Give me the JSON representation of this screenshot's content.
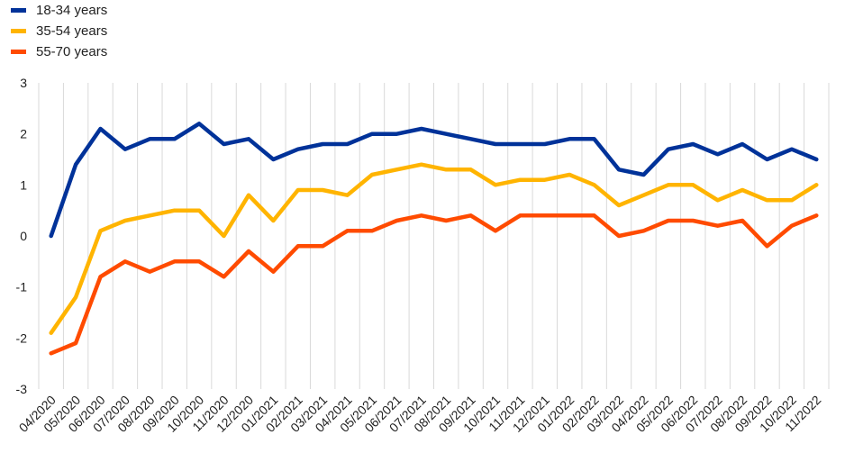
{
  "chart_data": {
    "type": "line",
    "title": "",
    "xlabel": "",
    "ylabel": "",
    "ylim": [
      -3,
      3
    ],
    "yticks": [
      3,
      2,
      1,
      0,
      -1,
      -2,
      -3
    ],
    "grid": "vertical",
    "legend_position": "top-left",
    "categories": [
      "04/2020",
      "05/2020",
      "06/2020",
      "07/2020",
      "08/2020",
      "09/2020",
      "10/2020",
      "11/2020",
      "12/2020",
      "01/2021",
      "02/2021",
      "03/2021",
      "04/2021",
      "05/2021",
      "06/2021",
      "07/2021",
      "08/2021",
      "09/2021",
      "10/2021",
      "11/2021",
      "12/2021",
      "01/2022",
      "02/2022",
      "03/2022",
      "04/2022",
      "05/2022",
      "06/2022",
      "07/2022",
      "08/2022",
      "09/2022",
      "10/2022",
      "11/2022"
    ],
    "series": [
      {
        "name": "18-34 years",
        "color": "#003299",
        "values": [
          0,
          1.4,
          2.1,
          1.7,
          1.9,
          1.9,
          2.2,
          1.8,
          1.9,
          1.5,
          1.7,
          1.8,
          1.8,
          2.0,
          2.0,
          2.1,
          2.0,
          1.9,
          1.8,
          1.8,
          1.8,
          1.9,
          1.9,
          1.3,
          1.2,
          1.7,
          1.8,
          1.6,
          1.8,
          1.5,
          1.7,
          1.5
        ]
      },
      {
        "name": "35-54 years",
        "color": "#FFB400",
        "values": [
          -1.9,
          -1.2,
          0.1,
          0.3,
          0.4,
          0.5,
          0.5,
          0.0,
          0.8,
          0.3,
          0.9,
          0.9,
          0.8,
          1.2,
          1.3,
          1.4,
          1.3,
          1.3,
          1.0,
          1.1,
          1.1,
          1.2,
          1.0,
          0.6,
          0.8,
          1.0,
          1.0,
          0.7,
          0.9,
          0.7,
          0.7,
          1.0
        ]
      },
      {
        "name": "55-70 years",
        "color": "#FF4B00",
        "values": [
          -2.3,
          -2.1,
          -0.8,
          -0.5,
          -0.7,
          -0.5,
          -0.5,
          -0.8,
          -0.3,
          -0.7,
          -0.2,
          -0.2,
          0.1,
          0.1,
          0.3,
          0.4,
          0.3,
          0.4,
          0.1,
          0.4,
          0.4,
          0.4,
          0.4,
          0.0,
          0.1,
          0.3,
          0.3,
          0.2,
          0.3,
          -0.2,
          0.2,
          0.4
        ]
      }
    ]
  }
}
